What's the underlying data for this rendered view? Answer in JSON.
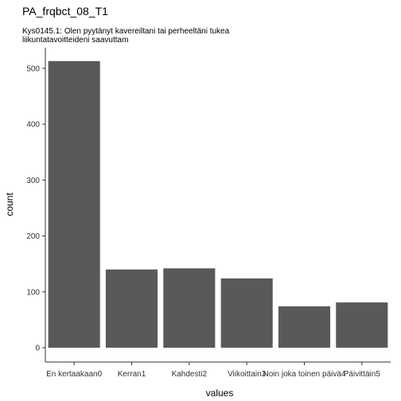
{
  "chart_data": {
    "type": "bar",
    "title": "PA_frqbct_08_T1",
    "subtitle_lines": [
      "Kys0145.1: Olen pyytänyt kavereiltani tai perheeltäni tukea",
      "liikuntatavoitteideni saavuttam"
    ],
    "xlabel": "values",
    "ylabel": "count",
    "categories": [
      "En kertaakaan0",
      "Kerran1",
      "Kahdesti2",
      "Viikoittain3",
      "Noin joka toinen päivä4",
      "Päivittäin5"
    ],
    "values": [
      513,
      140,
      142,
      124,
      74,
      81
    ],
    "ylim": [
      0,
      540
    ],
    "yticks": [
      0,
      100,
      200,
      300,
      400,
      500
    ],
    "grid": false,
    "bar_color": "#595959",
    "axis_color": "#333333"
  }
}
